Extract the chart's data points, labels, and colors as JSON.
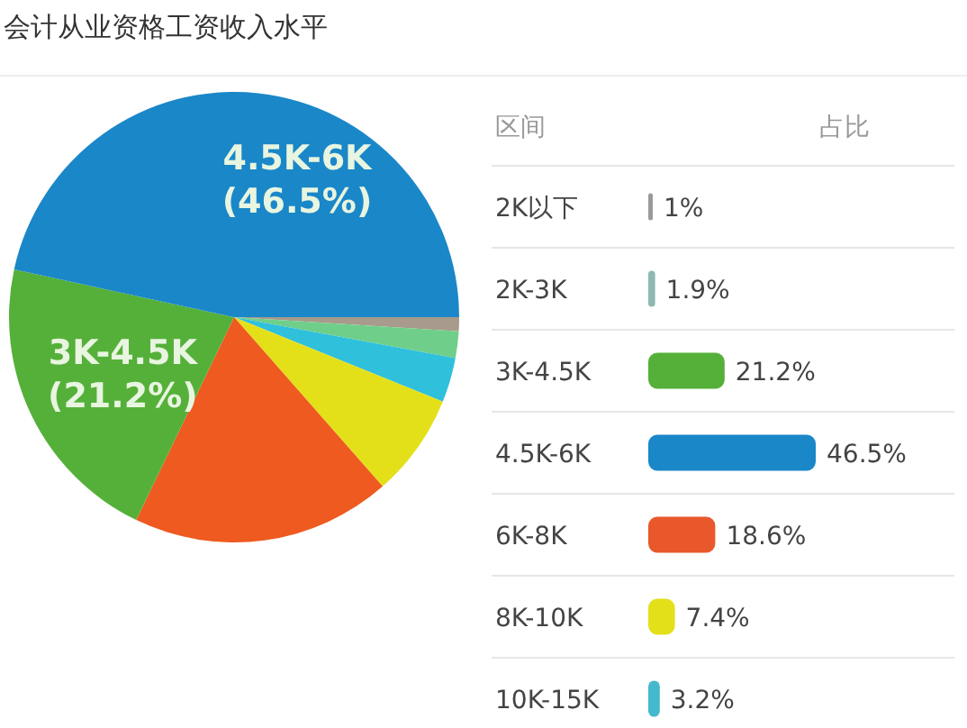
{
  "chart_data": [
    {
      "type": "pie",
      "title": "会计从业资格工资收入水平",
      "categories": [
        null,
        null,
        null,
        null,
        null,
        "3K-4.5K",
        "4.5K-6K"
      ],
      "values": [
        1,
        1.9,
        3.2,
        7.4,
        18.6,
        21.2,
        46.5
      ],
      "value_labels": [
        null,
        null,
        null,
        null,
        null,
        "(21.2%)",
        "(46.5%)"
      ],
      "colors": [
        "#a89a8c",
        "#6fcf8a",
        "#2fc0dc",
        "#e3e01a",
        "#ee5a1f",
        "#55b03a",
        "#1a87c8"
      ]
    },
    {
      "type": "bar",
      "orientation": "horizontal",
      "categories": [
        "2K以下",
        "2K-3K",
        "3K-4.5K",
        "4.5K-6K",
        "6K-8K",
        "8K-10K",
        "10K-15K"
      ],
      "values": [
        1,
        1.9,
        21.2,
        46.5,
        18.6,
        7.4,
        3.2
      ],
      "value_labels": [
        "1%",
        "1.9%",
        "21.2%",
        "46.5%",
        "18.6%",
        "7.4%",
        "3.2%"
      ],
      "colors": [
        "#9a9a9a",
        "#8fb8b2",
        "#55b03a",
        "#1a87c8",
        "#e8582a",
        "#e3e01a",
        "#44b8cc"
      ],
      "annotations": [
        "区间",
        "占比"
      ]
    }
  ]
}
